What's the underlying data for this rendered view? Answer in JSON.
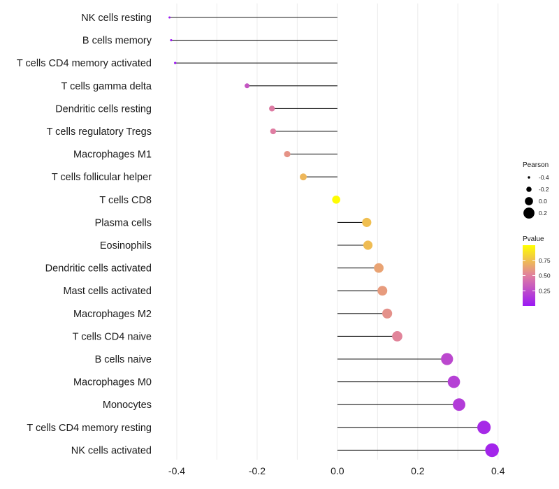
{
  "chart_data": {
    "type": "lollipop",
    "title": "",
    "xlabel": "",
    "ylabel": "",
    "xlim": [
      -0.44,
      0.43
    ],
    "xticks": [
      -0.4,
      -0.2,
      0.0,
      0.2,
      0.4
    ],
    "xtick_labels": [
      "-0.4",
      "-0.2",
      "0.0",
      "0.2",
      "0.4"
    ],
    "grid": true,
    "categories": [
      "NK cells resting",
      "B cells memory",
      "T cells CD4 memory activated",
      "T cells gamma delta",
      "Dendritic cells resting",
      "T cells regulatory  Tregs ",
      "Macrophages M1",
      "T cells follicular helper",
      "T cells CD8",
      "Plasma cells",
      "Eosinophils",
      "Dendritic cells activated",
      "Mast cells activated",
      "Macrophages M2",
      "T cells CD4 naive",
      "B cells naive",
      "Macrophages M0",
      "Monocytes",
      "T cells CD4 memory resting",
      "NK cells activated"
    ],
    "pearson": [
      -0.418,
      -0.414,
      -0.404,
      -0.225,
      -0.163,
      -0.16,
      -0.125,
      -0.085,
      -0.003,
      0.073,
      0.076,
      0.103,
      0.112,
      0.124,
      0.149,
      0.273,
      0.29,
      0.303,
      0.365,
      0.385
    ],
    "pvalue": [
      0.01,
      0.01,
      0.02,
      0.3,
      0.48,
      0.49,
      0.58,
      0.72,
      0.99,
      0.75,
      0.74,
      0.64,
      0.61,
      0.57,
      0.52,
      0.23,
      0.19,
      0.17,
      0.08,
      0.06
    ],
    "legend_size": {
      "title": "Pearson",
      "values": [
        -0.4,
        -0.2,
        0.0,
        0.2
      ],
      "labels": [
        "-0.4",
        "-0.2",
        "0.0",
        "0.2"
      ],
      "position": "right"
    },
    "legend_color": {
      "title": "Pvalue",
      "ticks": [
        0.75,
        0.5,
        0.25
      ],
      "labels": [
        "0.75",
        "0.50",
        "0.25"
      ],
      "low_color": "#9b19f5",
      "mid_color": "#e07fa0",
      "high_color": "#ffff00",
      "range": [
        0.0,
        1.0
      ],
      "position": "right"
    },
    "colors": {
      "stem": "#1a1a1a",
      "grid": "#ebebeb"
    }
  }
}
